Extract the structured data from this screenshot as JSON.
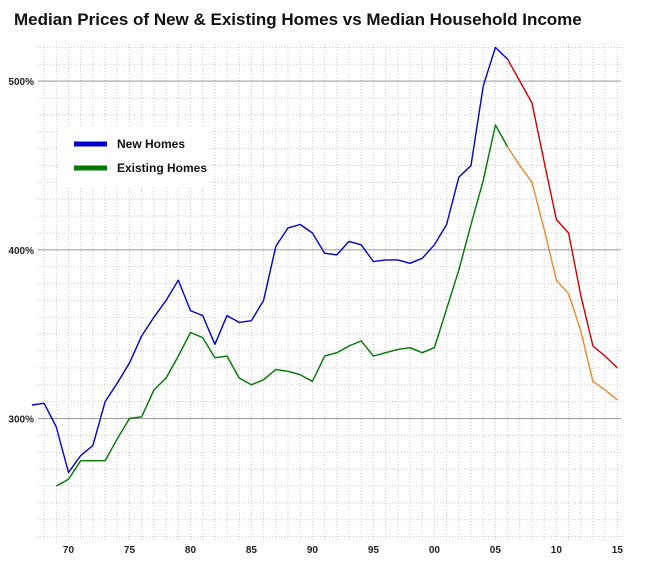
{
  "chart_data": {
    "type": "line",
    "title": "Median Prices of New & Existing Homes vs Median Household Income",
    "xlabel": "",
    "ylabel": "",
    "x_ticks": [
      "70",
      "75",
      "80",
      "85",
      "90",
      "95",
      "00",
      "05",
      "10",
      "15"
    ],
    "y_ticks": [
      "300%",
      "400%",
      "500%"
    ],
    "xlim": [
      1967.5,
      2015.3
    ],
    "ylim": [
      2.28,
      5.22
    ],
    "grid": true,
    "legend_position": "top-left",
    "series": [
      {
        "name": "New Homes",
        "color": "#0000cc",
        "projection_color": "#cc0000",
        "projection_from": 2006,
        "x": [
          1967,
          1968,
          1969,
          1970,
          1971,
          1972,
          1973,
          1974,
          1975,
          1976,
          1977,
          1978,
          1979,
          1980,
          1981,
          1982,
          1983,
          1984,
          1985,
          1986,
          1987,
          1988,
          1989,
          1990,
          1991,
          1992,
          1993,
          1994,
          1995,
          1996,
          1997,
          1998,
          1999,
          2000,
          2001,
          2002,
          2003,
          2004,
          2005,
          2006,
          2007,
          2008,
          2009,
          2010,
          2011,
          2012,
          2013,
          2014,
          2015
        ],
        "y": [
          3.08,
          3.09,
          2.95,
          2.68,
          2.78,
          2.84,
          3.1,
          3.21,
          3.33,
          3.49,
          3.6,
          3.7,
          3.82,
          3.64,
          3.61,
          3.44,
          3.61,
          3.57,
          3.58,
          3.7,
          4.02,
          4.13,
          4.15,
          4.1,
          3.98,
          3.97,
          4.05,
          4.03,
          3.93,
          3.94,
          3.94,
          3.92,
          3.95,
          4.03,
          4.15,
          4.43,
          4.5,
          4.97,
          5.2,
          5.13,
          5.0,
          4.87,
          4.52,
          4.18,
          4.1,
          3.73,
          3.43,
          3.37,
          3.3
        ]
      },
      {
        "name": "Existing Homes",
        "color": "#007700",
        "projection_color": "#e88a30",
        "projection_from": 2006,
        "x": [
          1969,
          1970,
          1971,
          1972,
          1973,
          1974,
          1975,
          1976,
          1977,
          1978,
          1979,
          1980,
          1981,
          1982,
          1983,
          1984,
          1985,
          1986,
          1987,
          1988,
          1989,
          1990,
          1991,
          1992,
          1993,
          1994,
          1995,
          1996,
          1997,
          1998,
          1999,
          2000,
          2001,
          2002,
          2003,
          2004,
          2005,
          2006,
          2007,
          2008,
          2009,
          2010,
          2011,
          2012,
          2013,
          2014,
          2015
        ],
        "y": [
          2.6,
          2.64,
          2.75,
          2.75,
          2.75,
          2.88,
          3.0,
          3.01,
          3.17,
          3.24,
          3.37,
          3.51,
          3.48,
          3.36,
          3.37,
          3.24,
          3.2,
          3.23,
          3.29,
          3.28,
          3.26,
          3.22,
          3.37,
          3.39,
          3.43,
          3.46,
          3.37,
          3.39,
          3.41,
          3.42,
          3.39,
          3.42,
          3.65,
          3.88,
          4.15,
          4.41,
          4.74,
          4.61,
          4.5,
          4.4,
          4.12,
          3.82,
          3.74,
          3.52,
          3.22,
          3.17,
          3.11
        ]
      }
    ]
  }
}
